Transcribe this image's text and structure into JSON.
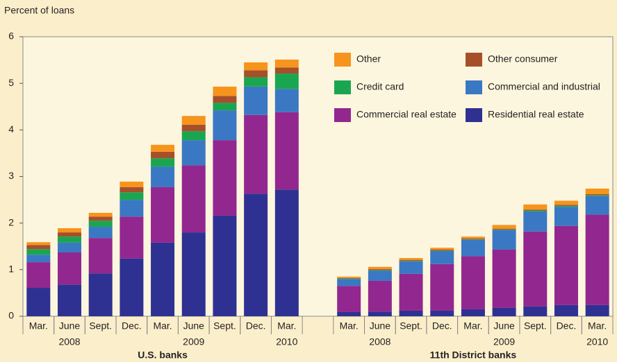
{
  "chart_data": {
    "type": "stacked-bar",
    "ylabel": "Percent of loans",
    "ylim": [
      0,
      6
    ],
    "yticks": [
      0,
      1,
      2,
      3,
      4,
      5,
      6
    ],
    "categories": [
      "Mar.",
      "June",
      "Sept.",
      "Dec.",
      "Mar.",
      "June",
      "Sept.",
      "Dec.",
      "Mar.",
      null,
      "Mar.",
      "June",
      "Sept.",
      "Dec.",
      "Mar.",
      "June",
      "Sept.",
      "Dec.",
      "Mar."
    ],
    "years": [
      null,
      "2008",
      null,
      null,
      null,
      "2009",
      null,
      null,
      "2010",
      null,
      null,
      "2008",
      null,
      null,
      null,
      "2009",
      null,
      null,
      "2010"
    ],
    "groups": [
      null,
      null,
      null,
      null,
      "U.S. banks",
      null,
      null,
      null,
      null,
      null,
      null,
      null,
      null,
      null,
      "11th District banks",
      null,
      null,
      null,
      null
    ],
    "series": [
      {
        "name": "Residential real estate",
        "color": "#2e3192",
        "values": [
          0.61,
          0.68,
          0.92,
          1.24,
          1.58,
          1.8,
          2.16,
          2.63,
          2.72,
          null,
          0.09,
          0.1,
          0.12,
          0.12,
          0.15,
          0.18,
          0.21,
          0.24,
          0.24
        ]
      },
      {
        "name": "Commercial real estate",
        "color": "#92278f",
        "values": [
          0.55,
          0.69,
          0.76,
          0.9,
          1.19,
          1.44,
          1.62,
          1.69,
          1.66,
          null,
          0.56,
          0.66,
          0.79,
          1.0,
          1.14,
          1.25,
          1.61,
          1.7,
          1.94
        ]
      },
      {
        "name": "Commercial and industrial",
        "color": "#3a78c3",
        "values": [
          0.16,
          0.21,
          0.24,
          0.36,
          0.44,
          0.54,
          0.64,
          0.61,
          0.5,
          null,
          0.15,
          0.22,
          0.27,
          0.28,
          0.35,
          0.42,
          0.43,
          0.41,
          0.4
        ]
      },
      {
        "name": "Credit card",
        "color": "#1aa651",
        "values": [
          0.12,
          0.13,
          0.13,
          0.16,
          0.18,
          0.19,
          0.16,
          0.2,
          0.33,
          null,
          0.01,
          0.01,
          0.01,
          0.01,
          0.01,
          0.01,
          0.02,
          0.02,
          0.02
        ]
      },
      {
        "name": "Other consumer",
        "color": "#a5502a",
        "values": [
          0.09,
          0.09,
          0.09,
          0.11,
          0.14,
          0.14,
          0.15,
          0.15,
          0.13,
          null,
          0.01,
          0.02,
          0.02,
          0.02,
          0.02,
          0.02,
          0.02,
          0.02,
          0.02
        ]
      },
      {
        "name": "Other",
        "color": "#f7941d",
        "values": [
          0.06,
          0.09,
          0.08,
          0.12,
          0.15,
          0.19,
          0.2,
          0.17,
          0.17,
          null,
          0.03,
          0.05,
          0.04,
          0.04,
          0.04,
          0.08,
          0.11,
          0.09,
          0.12
        ]
      }
    ]
  }
}
